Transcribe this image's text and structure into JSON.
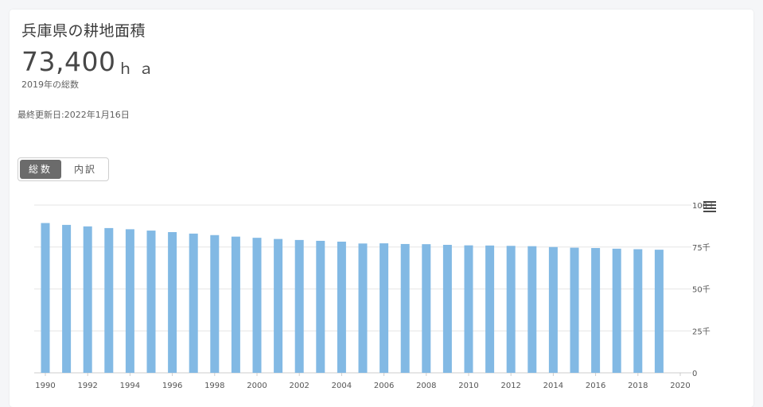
{
  "header": {
    "title": "兵庫県の耕地面積",
    "big_value": "73,400",
    "unit": "ｈａ",
    "subtitle": "2019年の総数",
    "updated": "最終更新日:2022年1月16日"
  },
  "toggle": {
    "options": [
      "総数",
      "内訳"
    ],
    "selected": "総数"
  },
  "icons": {
    "menu": "hamburger-menu-icon"
  },
  "colors": {
    "bar": "#82b9e4",
    "grid": "#e6e6e6",
    "axis": "#cccccc"
  },
  "chart_data": {
    "type": "bar",
    "x": [
      1990,
      1991,
      1992,
      1993,
      1994,
      1995,
      1996,
      1997,
      1998,
      1999,
      2000,
      2001,
      2002,
      2003,
      2004,
      2005,
      2006,
      2007,
      2008,
      2009,
      2010,
      2011,
      2012,
      2013,
      2014,
      2015,
      2016,
      2017,
      2018,
      2019
    ],
    "values": [
      89300,
      88200,
      87300,
      86300,
      85600,
      84800,
      83900,
      83000,
      82100,
      81200,
      80500,
      79800,
      79200,
      78700,
      78200,
      77100,
      77200,
      76800,
      76700,
      76300,
      76000,
      75900,
      75700,
      75500,
      75000,
      74600,
      74400,
      74000,
      73700,
      73400
    ],
    "x_tick_labels": [
      "1990",
      "1992",
      "1994",
      "1996",
      "1998",
      "2000",
      "2002",
      "2004",
      "2006",
      "2008",
      "2010",
      "2012",
      "2014",
      "2016",
      "2018",
      "2020"
    ],
    "y_tick_labels": [
      "0",
      "25千",
      "50千",
      "75千",
      "100千"
    ],
    "y_ticks": [
      0,
      25000,
      50000,
      75000,
      100000
    ],
    "xlim": [
      1990,
      2020
    ],
    "ylim": [
      0,
      100000
    ],
    "y_axis_side": "right",
    "grid": true,
    "legend": "none"
  }
}
